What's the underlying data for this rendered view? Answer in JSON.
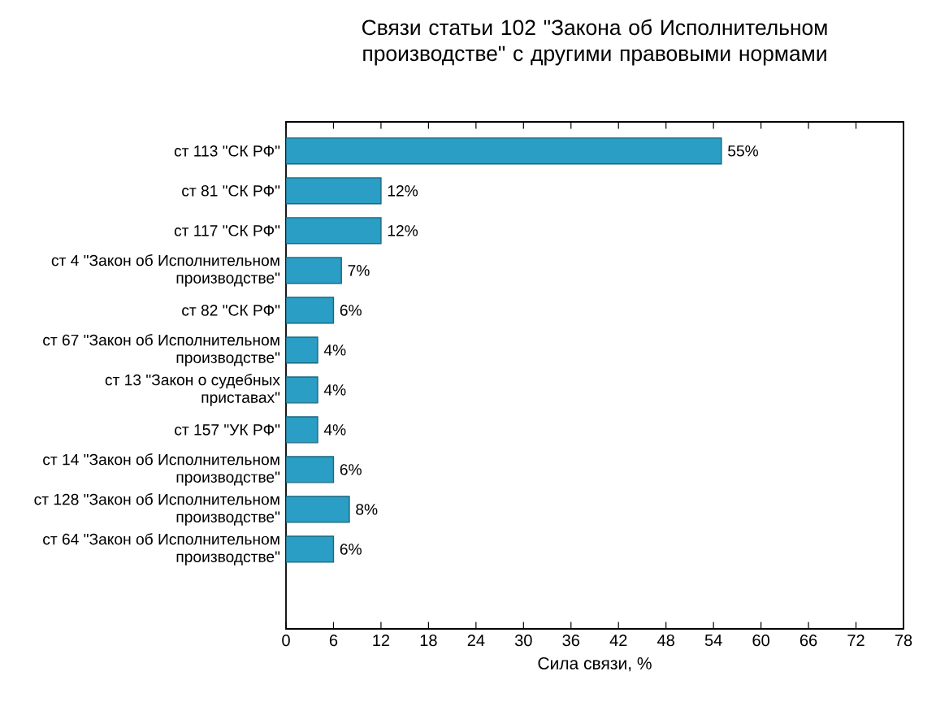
{
  "chart_data": {
    "type": "bar",
    "orientation": "horizontal",
    "title": "Связи статьи 102 \"Закона об Исполнительном производстве\" с другими правовыми нормами",
    "xlabel": "Сила связи, %",
    "categories": [
      "ст 113 \"СК РФ\"",
      "ст 81 \"СК РФ\"",
      "ст 117 \"СК РФ\"",
      "ст 4 \"Закон об Исполнительном производстве\"",
      "ст 82 \"СК РФ\"",
      "ст 67 \"Закон об Исполнительном производстве\"",
      "ст 13 \"Закон о судебных приставах\"",
      "ст 157 \"УК РФ\"",
      "ст 14 \"Закон об Исполнительном производстве\"",
      "ст 128 \"Закон об Исполнительном производстве\"",
      "ст 64 \"Закон об Исполнительном производстве\""
    ],
    "values": [
      55,
      12,
      12,
      7,
      6,
      4,
      4,
      4,
      6,
      8,
      6
    ],
    "value_labels": [
      "55%",
      "12%",
      "12%",
      "7%",
      "6%",
      "4%",
      "4%",
      "4%",
      "6%",
      "8%",
      "6%"
    ],
    "color": "#2a9ec4",
    "xlim": [
      0,
      78
    ],
    "xticks": [
      0,
      6,
      12,
      18,
      24,
      30,
      36,
      42,
      48,
      54,
      60,
      66,
      72,
      78
    ]
  }
}
